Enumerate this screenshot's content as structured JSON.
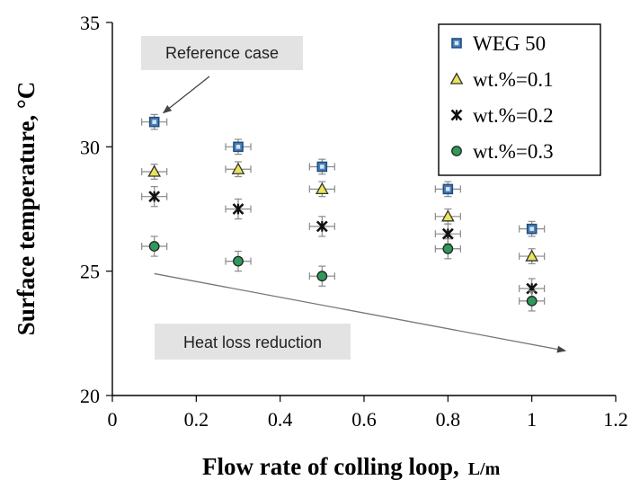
{
  "chart_data": {
    "type": "scatter",
    "xlabel": "Flow rate of colling loop,",
    "xunit": "L/m",
    "ylabel": "Surface temperature, °C",
    "xlim": [
      0,
      1.2
    ],
    "ylim": [
      20,
      35
    ],
    "xticks": [
      "0",
      "0.2",
      "0.4",
      "0.6",
      "0.8",
      "1",
      "1.2"
    ],
    "yticks": [
      "20",
      "25",
      "30",
      "35"
    ],
    "grid": false,
    "legend_position": "top-right",
    "series": [
      {
        "name": "WEG 50",
        "marker": "square",
        "color": "#4a7fb8",
        "x": [
          0.1,
          0.3,
          0.5,
          0.8,
          1.0
        ],
        "y": [
          31.0,
          30.0,
          29.2,
          28.3,
          26.7
        ],
        "yerr": 0.3,
        "xerr": 0.03
      },
      {
        "name": "wt.%=0.1",
        "marker": "triangle",
        "color": "#e9e45a",
        "x": [
          0.1,
          0.3,
          0.5,
          0.8,
          1.0
        ],
        "y": [
          29.0,
          29.1,
          28.3,
          27.2,
          25.6
        ],
        "yerr": 0.3,
        "xerr": 0.03
      },
      {
        "name": "wt.%=0.2",
        "marker": "asterisk",
        "color": "#111111",
        "x": [
          0.1,
          0.3,
          0.5,
          0.8,
          1.0
        ],
        "y": [
          28.0,
          27.5,
          26.8,
          26.5,
          24.3
        ],
        "yerr": 0.4,
        "xerr": 0.03
      },
      {
        "name": "wt.%=0.3",
        "marker": "circle",
        "color": "#2e9a5a",
        "x": [
          0.1,
          0.3,
          0.5,
          0.8,
          1.0
        ],
        "y": [
          26.0,
          25.4,
          24.8,
          25.9,
          23.8
        ],
        "yerr": 0.4,
        "xerr": 0.03
      }
    ],
    "annotations": [
      {
        "text": "Reference case",
        "target": {
          "x": 0.1,
          "y": 31.0
        }
      },
      {
        "text": "Heat loss reduction",
        "arrow_from": {
          "x": 0.1,
          "y": 24.9
        },
        "arrow_to": {
          "x": 1.08,
          "y": 21.8
        }
      }
    ]
  }
}
